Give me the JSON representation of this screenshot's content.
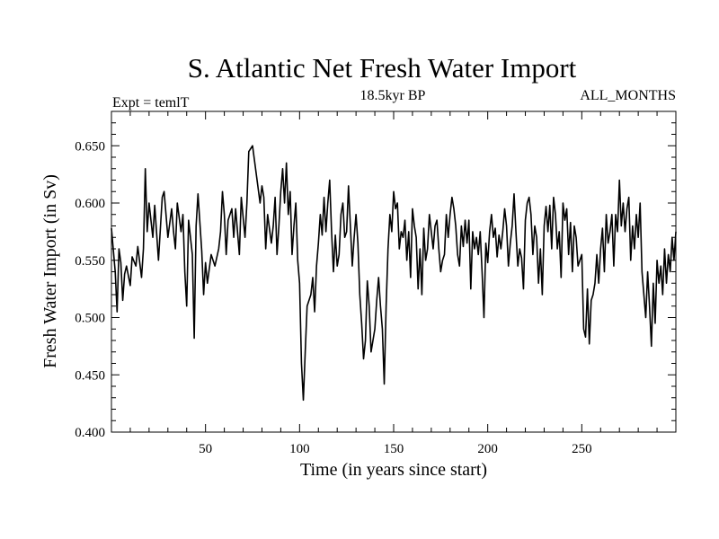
{
  "chart_data": {
    "type": "line",
    "title": "S. Atlantic Net Fresh Water Import",
    "subtitle_left": "Expt = temlT",
    "subtitle_center": "18.5kyr BP",
    "subtitle_right": "ALL_MONTHS",
    "xlabel": "Time (in years since start)",
    "ylabel": "Fresh Water Import (in Sv)",
    "xlim": [
      0,
      300
    ],
    "ylim": [
      0.4,
      0.68
    ],
    "x_ticks": [
      50,
      100,
      150,
      200,
      250
    ],
    "x_tick_labels": [
      "50",
      "100",
      "150",
      "200",
      "250"
    ],
    "y_ticks": [
      0.4,
      0.45,
      0.5,
      0.55,
      0.6,
      0.65
    ],
    "y_tick_labels": [
      "0.400",
      "0.450",
      "0.500",
      "0.550",
      "0.600",
      "0.650"
    ],
    "grid": false,
    "line_color": "#000000",
    "series": [
      {
        "name": "fresh_water_import",
        "points": [
          [
            0,
            0.578
          ],
          [
            2,
            0.54
          ],
          [
            3,
            0.505
          ],
          [
            4,
            0.56
          ],
          [
            5,
            0.548
          ],
          [
            6,
            0.515
          ],
          [
            7,
            0.538
          ],
          [
            8,
            0.545
          ],
          [
            10,
            0.528
          ],
          [
            11,
            0.553
          ],
          [
            13,
            0.545
          ],
          [
            14,
            0.562
          ],
          [
            16,
            0.535
          ],
          [
            17,
            0.56
          ],
          [
            18,
            0.63
          ],
          [
            19,
            0.575
          ],
          [
            20,
            0.6
          ],
          [
            21,
            0.585
          ],
          [
            22,
            0.57
          ],
          [
            23,
            0.598
          ],
          [
            25,
            0.55
          ],
          [
            27,
            0.605
          ],
          [
            28,
            0.61
          ],
          [
            29,
            0.59
          ],
          [
            30,
            0.57
          ],
          [
            32,
            0.595
          ],
          [
            33,
            0.575
          ],
          [
            34,
            0.56
          ],
          [
            35,
            0.6
          ],
          [
            37,
            0.575
          ],
          [
            38,
            0.59
          ],
          [
            39,
            0.54
          ],
          [
            40,
            0.51
          ],
          [
            41,
            0.585
          ],
          [
            43,
            0.555
          ],
          [
            44,
            0.482
          ],
          [
            45,
            0.58
          ],
          [
            46,
            0.608
          ],
          [
            48,
            0.558
          ],
          [
            49,
            0.52
          ],
          [
            50,
            0.548
          ],
          [
            51,
            0.53
          ],
          [
            53,
            0.555
          ],
          [
            55,
            0.545
          ],
          [
            57,
            0.56
          ],
          [
            58,
            0.575
          ],
          [
            59,
            0.61
          ],
          [
            60,
            0.59
          ],
          [
            61,
            0.555
          ],
          [
            62,
            0.585
          ],
          [
            64,
            0.595
          ],
          [
            65,
            0.57
          ],
          [
            66,
            0.595
          ],
          [
            68,
            0.555
          ],
          [
            69,
            0.605
          ],
          [
            71,
            0.57
          ],
          [
            72,
            0.6
          ],
          [
            73,
            0.645
          ],
          [
            75,
            0.65
          ],
          [
            77,
            0.625
          ],
          [
            79,
            0.6
          ],
          [
            80,
            0.615
          ],
          [
            81,
            0.605
          ],
          [
            82,
            0.56
          ],
          [
            83,
            0.59
          ],
          [
            85,
            0.565
          ],
          [
            86,
            0.58
          ],
          [
            87,
            0.605
          ],
          [
            88,
            0.555
          ],
          [
            89,
            0.58
          ],
          [
            90,
            0.61
          ],
          [
            91,
            0.63
          ],
          [
            92,
            0.6
          ],
          [
            93,
            0.635
          ],
          [
            94,
            0.59
          ],
          [
            95,
            0.61
          ],
          [
            96,
            0.555
          ],
          [
            97,
            0.58
          ],
          [
            98,
            0.6
          ],
          [
            99,
            0.55
          ],
          [
            100,
            0.53
          ],
          [
            101,
            0.46
          ],
          [
            102,
            0.428
          ],
          [
            103,
            0.47
          ],
          [
            104,
            0.51
          ],
          [
            106,
            0.52
          ],
          [
            107,
            0.535
          ],
          [
            108,
            0.505
          ],
          [
            109,
            0.545
          ],
          [
            110,
            0.565
          ],
          [
            111,
            0.59
          ],
          [
            112,
            0.572
          ],
          [
            113,
            0.605
          ],
          [
            114,
            0.575
          ],
          [
            115,
            0.6
          ],
          [
            116,
            0.62
          ],
          [
            117,
            0.575
          ],
          [
            118,
            0.54
          ],
          [
            119,
            0.572
          ],
          [
            120,
            0.545
          ],
          [
            121,
            0.555
          ],
          [
            122,
            0.59
          ],
          [
            123,
            0.6
          ],
          [
            124,
            0.57
          ],
          [
            125,
            0.575
          ],
          [
            126,
            0.615
          ],
          [
            127,
            0.58
          ],
          [
            128,
            0.545
          ],
          [
            129,
            0.57
          ],
          [
            130,
            0.59
          ],
          [
            131,
            0.565
          ],
          [
            132,
            0.52
          ],
          [
            133,
            0.495
          ],
          [
            134,
            0.464
          ],
          [
            135,
            0.48
          ],
          [
            136,
            0.532
          ],
          [
            137,
            0.51
          ],
          [
            138,
            0.47
          ],
          [
            140,
            0.49
          ],
          [
            141,
            0.515
          ],
          [
            142,
            0.535
          ],
          [
            143,
            0.51
          ],
          [
            144,
            0.49
          ],
          [
            145,
            0.442
          ],
          [
            146,
            0.51
          ],
          [
            147,
            0.56
          ],
          [
            148,
            0.59
          ],
          [
            149,
            0.575
          ],
          [
            150,
            0.61
          ],
          [
            151,
            0.595
          ],
          [
            152,
            0.6
          ],
          [
            153,
            0.56
          ],
          [
            154,
            0.575
          ],
          [
            155,
            0.57
          ],
          [
            156,
            0.585
          ],
          [
            157,
            0.55
          ],
          [
            158,
            0.575
          ],
          [
            159,
            0.535
          ],
          [
            160,
            0.595
          ],
          [
            161,
            0.58
          ],
          [
            162,
            0.57
          ],
          [
            163,
            0.525
          ],
          [
            164,
            0.56
          ],
          [
            165,
            0.52
          ],
          [
            166,
            0.578
          ],
          [
            167,
            0.55
          ],
          [
            168,
            0.56
          ],
          [
            169,
            0.59
          ],
          [
            170,
            0.575
          ],
          [
            171,
            0.56
          ],
          [
            172,
            0.58
          ],
          [
            173,
            0.585
          ],
          [
            174,
            0.56
          ],
          [
            175,
            0.54
          ],
          [
            176,
            0.55
          ],
          [
            177,
            0.555
          ],
          [
            178,
            0.59
          ],
          [
            179,
            0.57
          ],
          [
            180,
            0.59
          ],
          [
            181,
            0.605
          ],
          [
            182,
            0.595
          ],
          [
            183,
            0.58
          ],
          [
            184,
            0.555
          ],
          [
            185,
            0.545
          ],
          [
            186,
            0.58
          ],
          [
            187,
            0.562
          ],
          [
            188,
            0.585
          ],
          [
            189,
            0.565
          ],
          [
            190,
            0.585
          ],
          [
            191,
            0.525
          ],
          [
            192,
            0.575
          ],
          [
            193,
            0.56
          ],
          [
            194,
            0.57
          ],
          [
            195,
            0.555
          ],
          [
            196,
            0.575
          ],
          [
            197,
            0.54
          ],
          [
            198,
            0.5
          ],
          [
            199,
            0.565
          ],
          [
            200,
            0.548
          ],
          [
            201,
            0.575
          ],
          [
            202,
            0.59
          ],
          [
            203,
            0.57
          ],
          [
            204,
            0.578
          ],
          [
            205,
            0.553
          ],
          [
            206,
            0.572
          ],
          [
            207,
            0.56
          ],
          [
            208,
            0.575
          ],
          [
            209,
            0.595
          ],
          [
            210,
            0.58
          ],
          [
            211,
            0.545
          ],
          [
            212,
            0.565
          ],
          [
            213,
            0.58
          ],
          [
            214,
            0.608
          ],
          [
            215,
            0.575
          ],
          [
            216,
            0.545
          ],
          [
            217,
            0.56
          ],
          [
            218,
            0.552
          ],
          [
            219,
            0.525
          ],
          [
            220,
            0.585
          ],
          [
            221,
            0.6
          ],
          [
            222,
            0.605
          ],
          [
            223,
            0.59
          ],
          [
            224,
            0.555
          ],
          [
            225,
            0.58
          ],
          [
            226,
            0.57
          ],
          [
            227,
            0.53
          ],
          [
            228,
            0.56
          ],
          [
            229,
            0.52
          ],
          [
            230,
            0.58
          ],
          [
            231,
            0.597
          ],
          [
            232,
            0.575
          ],
          [
            233,
            0.598
          ],
          [
            234,
            0.56
          ],
          [
            235,
            0.605
          ],
          [
            236,
            0.59
          ],
          [
            237,
            0.56
          ],
          [
            238,
            0.575
          ],
          [
            239,
            0.535
          ],
          [
            240,
            0.6
          ],
          [
            241,
            0.585
          ],
          [
            242,
            0.595
          ],
          [
            243,
            0.555
          ],
          [
            244,
            0.583
          ],
          [
            245,
            0.54
          ],
          [
            246,
            0.58
          ],
          [
            247,
            0.57
          ],
          [
            248,
            0.545
          ],
          [
            249,
            0.55
          ],
          [
            250,
            0.555
          ],
          [
            251,
            0.49
          ],
          [
            252,
            0.483
          ],
          [
            253,
            0.525
          ],
          [
            254,
            0.477
          ],
          [
            255,
            0.515
          ],
          [
            256,
            0.52
          ],
          [
            257,
            0.53
          ],
          [
            258,
            0.555
          ],
          [
            259,
            0.53
          ],
          [
            260,
            0.56
          ],
          [
            261,
            0.578
          ],
          [
            262,
            0.54
          ],
          [
            263,
            0.59
          ],
          [
            264,
            0.565
          ],
          [
            265,
            0.575
          ],
          [
            266,
            0.59
          ],
          [
            267,
            0.545
          ],
          [
            268,
            0.59
          ],
          [
            269,
            0.575
          ],
          [
            270,
            0.62
          ],
          [
            271,
            0.58
          ],
          [
            272,
            0.6
          ],
          [
            273,
            0.575
          ],
          [
            274,
            0.595
          ],
          [
            275,
            0.605
          ],
          [
            276,
            0.55
          ],
          [
            277,
            0.58
          ],
          [
            278,
            0.56
          ],
          [
            279,
            0.59
          ],
          [
            280,
            0.57
          ],
          [
            281,
            0.6
          ],
          [
            282,
            0.54
          ],
          [
            283,
            0.52
          ],
          [
            284,
            0.5
          ],
          [
            285,
            0.54
          ],
          [
            286,
            0.51
          ],
          [
            287,
            0.475
          ],
          [
            288,
            0.53
          ],
          [
            289,
            0.495
          ],
          [
            290,
            0.55
          ],
          [
            291,
            0.53
          ],
          [
            292,
            0.545
          ],
          [
            293,
            0.52
          ],
          [
            294,
            0.56
          ],
          [
            295,
            0.53
          ],
          [
            296,
            0.555
          ],
          [
            297,
            0.54
          ],
          [
            298,
            0.57
          ],
          [
            299,
            0.55
          ],
          [
            300,
            0.575
          ]
        ]
      }
    ]
  }
}
